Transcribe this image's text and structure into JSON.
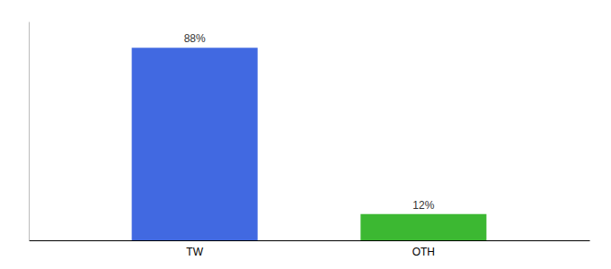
{
  "chart_data": {
    "type": "bar",
    "categories": [
      "TW",
      "OTH"
    ],
    "values": [
      88,
      12
    ],
    "colors": [
      "#4169e1",
      "#3cb832"
    ],
    "value_labels": [
      "88%",
      "12%"
    ],
    "data_labels": true,
    "ylim": [
      0,
      100
    ],
    "tick_labels": "x"
  }
}
